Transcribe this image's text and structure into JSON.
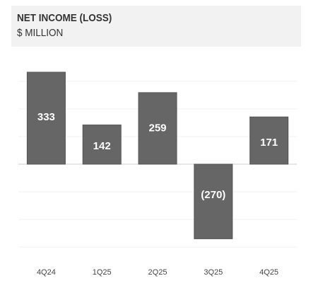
{
  "header": {
    "title": "NET INCOME (LOSS)",
    "subtitle": "$ MILLION"
  },
  "chart_data": {
    "type": "bar",
    "title": "NET INCOME (LOSS)",
    "subtitle": "$ MILLION",
    "xlabel": "",
    "ylabel": "",
    "categories": [
      "4Q24",
      "1Q25",
      "2Q25",
      "3Q25",
      "4Q25"
    ],
    "values": [
      333,
      142,
      259,
      -270,
      171
    ],
    "value_labels": [
      "333",
      "142",
      "259",
      "(270)",
      "171"
    ],
    "ylim": [
      -300,
      400
    ],
    "grid": true,
    "legend": "none",
    "bar_color": "#666666",
    "bar_border_color": "#555555",
    "bar_label_color": "#ffffff"
  }
}
